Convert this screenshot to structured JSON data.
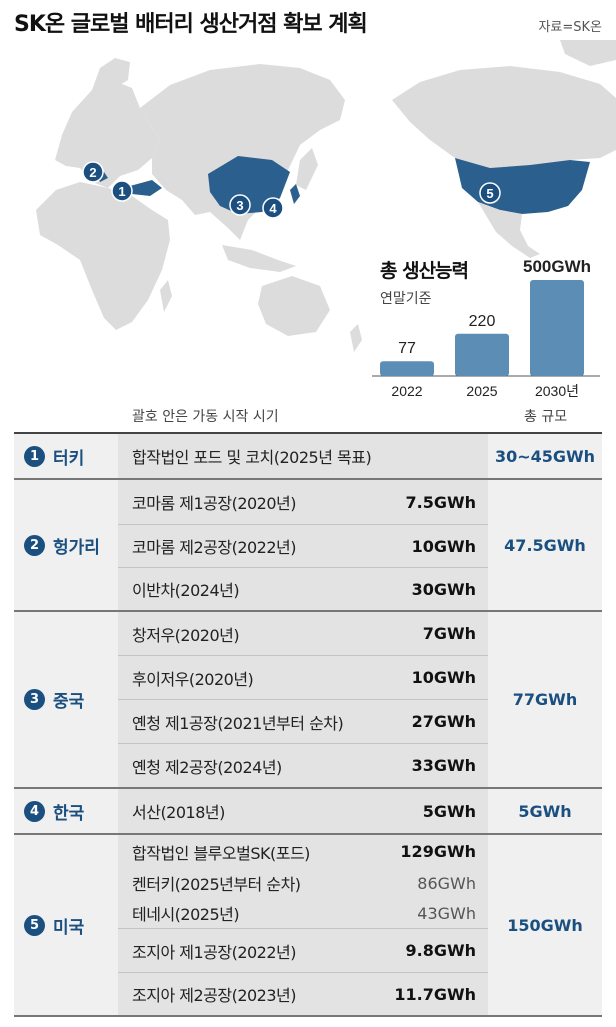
{
  "title": "SK온 글로벌 배터리 생산거점 확보 계획",
  "source": "자료=SK온",
  "map_markers": [
    {
      "num": "1",
      "label": "터키"
    },
    {
      "num": "2",
      "label": "헝가리"
    },
    {
      "num": "3",
      "label": "중국"
    },
    {
      "num": "4",
      "label": "한국"
    },
    {
      "num": "5",
      "label": "미국"
    }
  ],
  "chart_data": {
    "type": "bar",
    "title": "총 생산능력",
    "subtitle": "연말기준",
    "categories": [
      "2022",
      "2025",
      "2030년"
    ],
    "values": [
      77,
      220,
      500
    ],
    "value_labels": [
      "77",
      "220",
      "500GWh"
    ],
    "unit": "GWh",
    "colors": {
      "bar": "#5b8db5"
    }
  },
  "table": {
    "header_period": "괄호 안은 가동 시작 시기",
    "header_total": "총 규모",
    "groups": [
      {
        "num": "1",
        "country": "터키",
        "total": "30~45GWh",
        "plants": [
          {
            "name": "합작법인 포드 및 코치(2025년 목표)",
            "cap": ""
          }
        ]
      },
      {
        "num": "2",
        "country": "헝가리",
        "total": "47.5GWh",
        "plants": [
          {
            "name": "코마롬 제1공장(2020년)",
            "cap": "7.5GWh"
          },
          {
            "name": "코마롬 제2공장(2022년)",
            "cap": "10GWh"
          },
          {
            "name": "이반차(2024년)",
            "cap": "30GWh"
          }
        ]
      },
      {
        "num": "3",
        "country": "중국",
        "total": "77GWh",
        "plants": [
          {
            "name": "창저우(2020년)",
            "cap": "7GWh"
          },
          {
            "name": "후이저우(2020년)",
            "cap": "10GWh"
          },
          {
            "name": "옌청 제1공장(2021년부터 순차)",
            "cap": "27GWh"
          },
          {
            "name": "옌청 제2공장(2024년)",
            "cap": "33GWh"
          }
        ]
      },
      {
        "num": "4",
        "country": "한국",
        "total": "5GWh",
        "plants": [
          {
            "name": "서산(2018년)",
            "cap": "5GWh"
          }
        ]
      },
      {
        "num": "5",
        "country": "미국",
        "total": "150GWh",
        "plants": [
          {
            "name": "합작법인 블루오벌SK(포드)",
            "cap": "129GWh"
          },
          {
            "name": "켄터키(2025년부터 순차)",
            "cap": "86GWh",
            "sub": true
          },
          {
            "name": "테네시(2025년)",
            "cap": "43GWh",
            "sub": true
          },
          {
            "name": "조지아 제1공장(2022년)",
            "cap": "9.8GWh"
          },
          {
            "name": "조지아 제2공장(2023년)",
            "cap": "11.7GWh"
          }
        ]
      }
    ]
  }
}
